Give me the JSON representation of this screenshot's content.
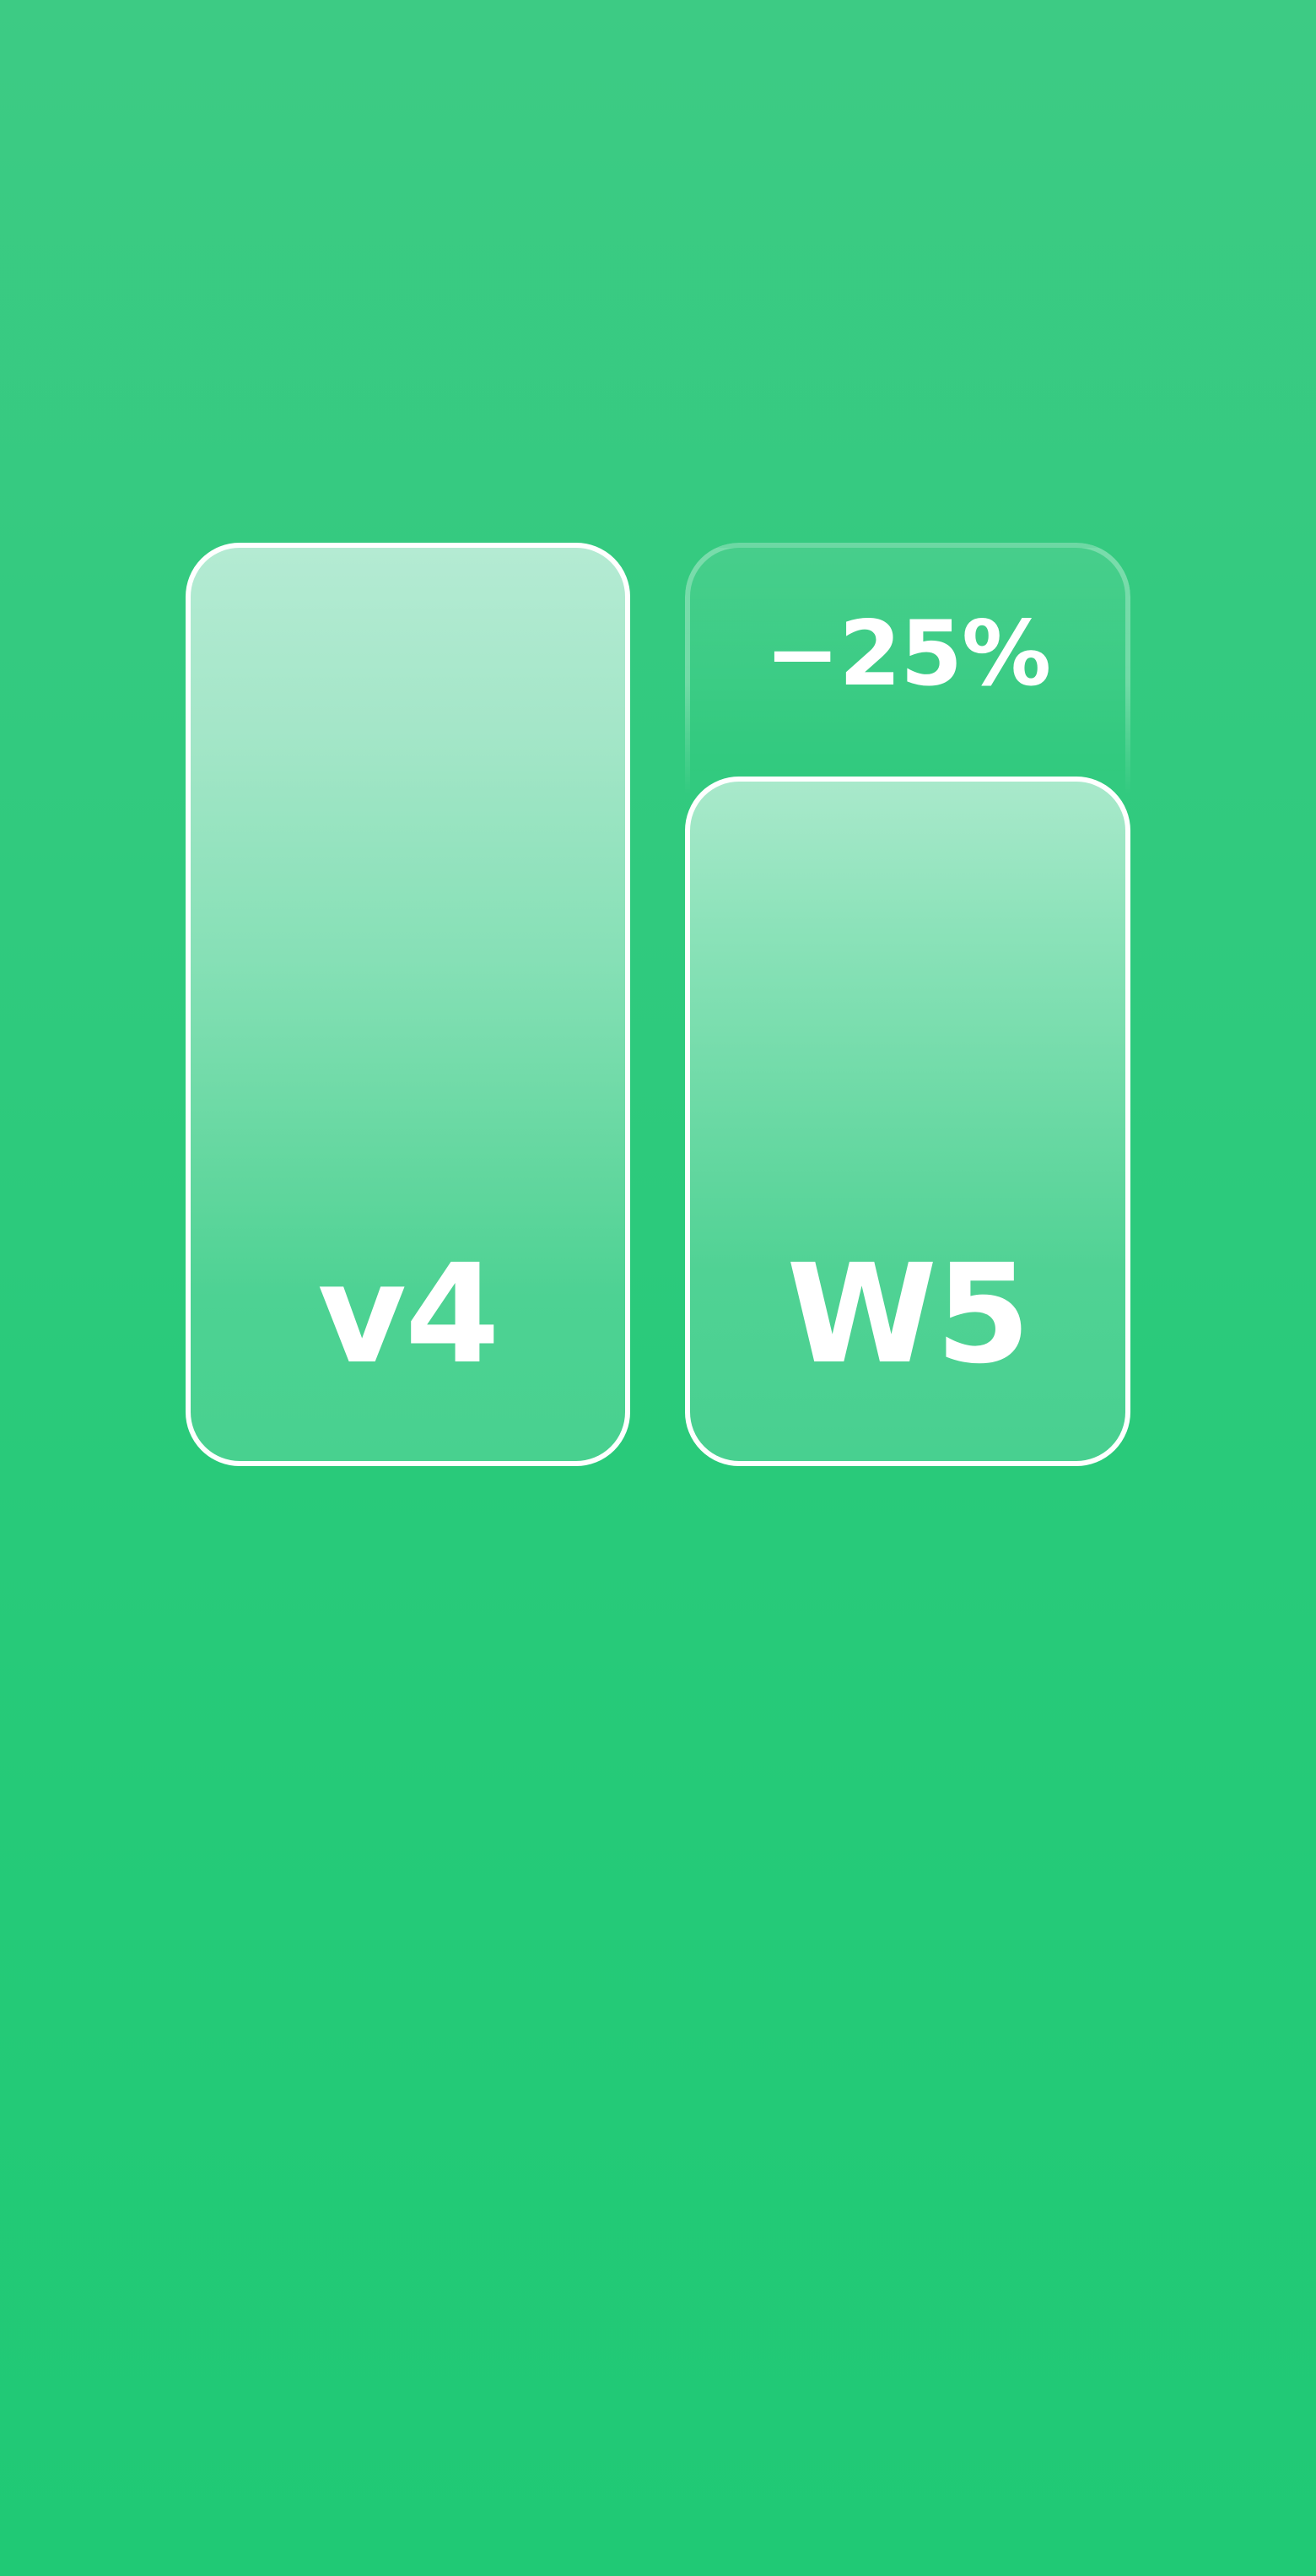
{
  "comparison": {
    "left": {
      "label": "v4",
      "relative_size": 1.0
    },
    "right": {
      "label": "W5",
      "relative_size": 0.75
    },
    "difference_label": "−25%"
  },
  "colors": {
    "background": "#2ecb7c",
    "card_border": "#ffffff",
    "text": "#ffffff"
  }
}
